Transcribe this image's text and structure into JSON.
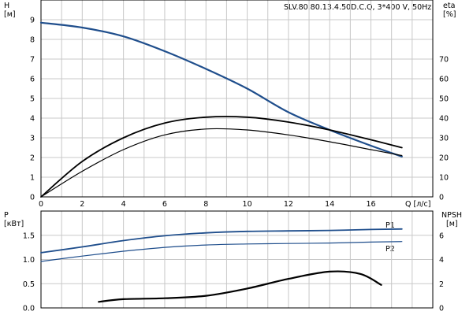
{
  "chart_data": [
    {
      "type": "line",
      "title": "SLV.80.80.13.4.50D.C.Q, 3*400 V, 50Hz",
      "xlabel": "Q [л/с]",
      "ylabel_left_top": "H",
      "ylabel_left_unit": "[м]",
      "ylabel_right_top": "eta",
      "ylabel_right_unit": "[%]",
      "xlim": [
        0,
        19
      ],
      "ylim_left": [
        0,
        10
      ],
      "ylim_right": [
        0,
        100
      ],
      "x_ticks": [
        "0",
        "2",
        "4",
        "6",
        "8",
        "10",
        "12",
        "14",
        "16"
      ],
      "y_left_ticks": [
        "0",
        "1",
        "2",
        "3",
        "4",
        "5",
        "6",
        "7",
        "8",
        "9"
      ],
      "y_right_ticks": [
        "0",
        "10",
        "20",
        "30",
        "40",
        "50",
        "60",
        "70"
      ],
      "grid": true,
      "series": [
        {
          "axis": "left",
          "color": "#1f4e8c",
          "x": [
            0,
            2,
            4,
            6,
            8,
            10,
            12,
            14,
            16,
            17.5
          ],
          "y": [
            8.85,
            8.6,
            8.15,
            7.4,
            6.5,
            5.5,
            4.3,
            3.4,
            2.6,
            2.05
          ]
        },
        {
          "axis": "right",
          "color": "#000000",
          "x": [
            0,
            2,
            4,
            6,
            8,
            10,
            12,
            14,
            16,
            17.5
          ],
          "y": [
            0,
            13,
            24,
            31.5,
            34.5,
            34,
            31.5,
            28,
            24,
            21
          ]
        },
        {
          "axis": "right",
          "color": "#000000",
          "x": [
            0,
            2,
            4,
            6,
            8,
            10,
            12,
            14,
            16,
            17.5
          ],
          "y": [
            0,
            18,
            30,
            37.5,
            40.5,
            40.5,
            38,
            34,
            29,
            25
          ]
        }
      ]
    },
    {
      "type": "line",
      "ylabel_left_top": "P",
      "ylabel_left_unit": "[кВт]",
      "ylabel_right_top": "NPSH",
      "ylabel_right_unit": "[м]",
      "xlim": [
        0,
        19
      ],
      "ylim_left": [
        0,
        2
      ],
      "ylim_right": [
        0,
        8
      ],
      "y_left_ticks": [
        "0.0",
        "0.5",
        "1.0",
        "1.5"
      ],
      "y_right_ticks": [
        "0",
        "2",
        "4",
        "6"
      ],
      "grid": true,
      "series": [
        {
          "name": "P1",
          "axis": "left",
          "color": "#1f4e8c",
          "x": [
            0,
            2,
            4,
            6,
            8,
            10,
            12,
            14,
            16,
            17.5
          ],
          "y": [
            1.14,
            1.26,
            1.39,
            1.49,
            1.55,
            1.58,
            1.59,
            1.6,
            1.62,
            1.63
          ]
        },
        {
          "name": "P2",
          "axis": "left",
          "color": "#1f4e8c",
          "x": [
            0,
            2,
            4,
            6,
            8,
            10,
            12,
            14,
            16,
            17.5
          ],
          "y": [
            0.96,
            1.07,
            1.17,
            1.25,
            1.3,
            1.32,
            1.33,
            1.34,
            1.36,
            1.37
          ]
        },
        {
          "axis": "right",
          "color": "#000000",
          "x": [
            2.8,
            4,
            6,
            8,
            10,
            12,
            14,
            15.5,
            16.5
          ],
          "y": [
            0.5,
            0.72,
            0.8,
            1.0,
            1.6,
            2.4,
            3.0,
            2.8,
            1.9
          ]
        }
      ]
    }
  ]
}
